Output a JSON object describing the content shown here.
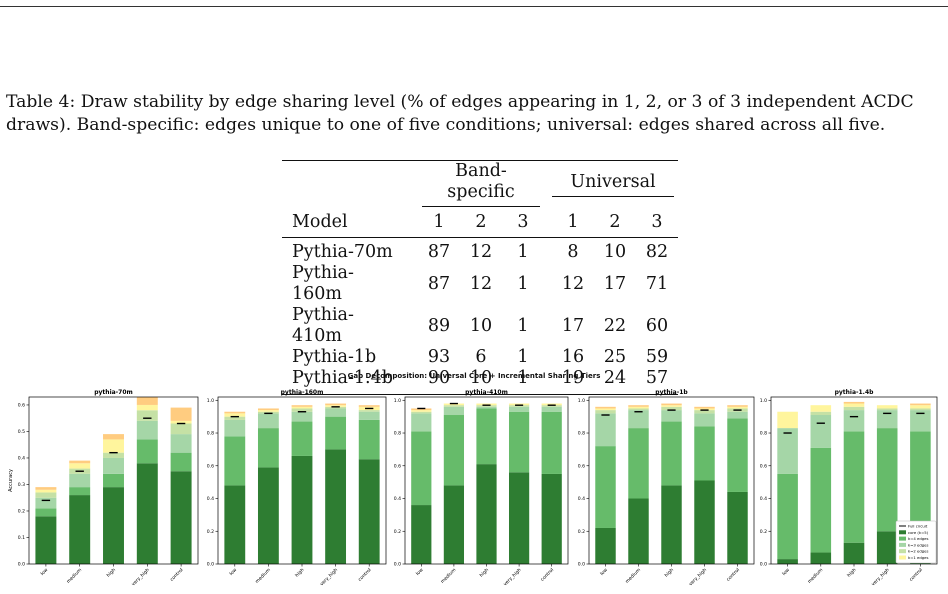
{
  "caption": "Table 4: Draw stability by edge sharing level (% of edges appearing in 1, 2, or 3 of 3 independent ACDC draws). Band-specific: edges unique to one of five conditions; universal: edges shared across all five.",
  "table": {
    "group_headers": [
      "Band-specific",
      "Universal"
    ],
    "model_header": "Model",
    "sub_headers": [
      "1",
      "2",
      "3",
      "1",
      "2",
      "3"
    ],
    "rows": [
      {
        "model": "Pythia-70m",
        "values": [
          "87",
          "12",
          "1",
          "8",
          "10",
          "82"
        ]
      },
      {
        "model": "Pythia-160m",
        "values": [
          "87",
          "12",
          "1",
          "12",
          "17",
          "71"
        ]
      },
      {
        "model": "Pythia-410m",
        "values": [
          "89",
          "10",
          "1",
          "17",
          "22",
          "60"
        ]
      },
      {
        "model": "Pythia-1b",
        "values": [
          "93",
          "6",
          "1",
          "16",
          "25",
          "59"
        ]
      },
      {
        "model": "Pythia-1.4b",
        "values": [
          "90",
          "10",
          "1",
          "19",
          "24",
          "57"
        ]
      }
    ]
  },
  "figure": {
    "title": "Gap Decomposition: Universal Core + Incremental Sharing Tiers",
    "colors": [
      "#2e7d32",
      "#66bb6a",
      "#a5d6a7",
      "#c5e1a5",
      "#fff59d",
      "#ffcc80"
    ],
    "legend": [
      "Full circuit",
      "core (k=5)",
      "k=4 edges",
      "k=3 edges",
      "k=2 edges",
      "k=1 edges"
    ]
  },
  "chart_data": [
    {
      "type": "bar",
      "stacked": true,
      "title": "pythia-70m",
      "ylabel": "Accuracy",
      "categories": [
        "low",
        "medium",
        "high",
        "very_high",
        "control"
      ],
      "ylim": [
        0,
        0.63
      ],
      "yticks": [
        "0.0",
        "0.1",
        "0.2",
        "0.3",
        "0.4",
        "0.5",
        "0.6"
      ],
      "ytick_values": [
        0,
        0.1,
        0.2,
        0.3,
        0.4,
        0.5,
        0.6
      ],
      "series": [
        {
          "values": [
            0.18,
            0.26,
            0.29,
            0.38,
            0.35
          ]
        },
        {
          "values": [
            0.03,
            0.03,
            0.05,
            0.09,
            0.07
          ]
        },
        {
          "values": [
            0.04,
            0.05,
            0.06,
            0.07,
            0.07
          ]
        },
        {
          "values": [
            0.02,
            0.02,
            0.02,
            0.04,
            0.04
          ]
        },
        {
          "values": [
            0.01,
            0.02,
            0.05,
            0.02,
            0.01
          ]
        },
        {
          "values": [
            0.01,
            0.01,
            0.02,
            0.03,
            0.05
          ]
        }
      ],
      "full_circuit": [
        0.24,
        0.35,
        0.42,
        0.55,
        0.53
      ]
    },
    {
      "type": "bar",
      "stacked": true,
      "title": "pythia-160m",
      "categories": [
        "low",
        "medium",
        "high",
        "very_high",
        "control"
      ],
      "ylim": [
        0,
        1.02
      ],
      "yticks": [
        "0.0",
        "0.2",
        "0.4",
        "0.6",
        "0.8",
        "1.0"
      ],
      "ytick_values": [
        0,
        0.2,
        0.4,
        0.6,
        0.8,
        1.0
      ],
      "series": [
        {
          "values": [
            0.48,
            0.59,
            0.66,
            0.7,
            0.64
          ]
        },
        {
          "values": [
            0.3,
            0.24,
            0.21,
            0.2,
            0.24
          ]
        },
        {
          "values": [
            0.1,
            0.09,
            0.06,
            0.05,
            0.05
          ]
        },
        {
          "values": [
            0.02,
            0.01,
            0.02,
            0.01,
            0.01
          ]
        },
        {
          "values": [
            0.02,
            0.01,
            0.01,
            0.01,
            0.02
          ]
        },
        {
          "values": [
            0.01,
            0.01,
            0.01,
            0.01,
            0.01
          ]
        }
      ],
      "full_circuit": [
        0.9,
        0.92,
        0.93,
        0.96,
        0.95
      ]
    },
    {
      "type": "bar",
      "stacked": true,
      "title": "pythia-410m",
      "categories": [
        "low",
        "medium",
        "high",
        "very_high",
        "control"
      ],
      "ylim": [
        0,
        1.02
      ],
      "yticks": [
        "0.0",
        "0.2",
        "0.4",
        "0.6",
        "0.8",
        "1.0"
      ],
      "ytick_values": [
        0,
        0.2,
        0.4,
        0.6,
        0.8,
        1.0
      ],
      "series": [
        {
          "values": [
            0.36,
            0.48,
            0.61,
            0.56,
            0.55
          ]
        },
        {
          "values": [
            0.45,
            0.43,
            0.34,
            0.37,
            0.38
          ]
        },
        {
          "values": [
            0.11,
            0.05,
            0.01,
            0.03,
            0.03
          ]
        },
        {
          "values": [
            0.01,
            0.01,
            0.01,
            0.01,
            0.01
          ]
        },
        {
          "values": [
            0.01,
            0.01,
            0.01,
            0.01,
            0.01
          ]
        },
        {
          "values": [
            0.01,
            0.0,
            0.0,
            0.0,
            0.0
          ]
        }
      ],
      "full_circuit": [
        0.95,
        0.98,
        0.97,
        0.97,
        0.97
      ]
    },
    {
      "type": "bar",
      "stacked": true,
      "title": "pythia-1b",
      "categories": [
        "low",
        "medium",
        "high",
        "very_high",
        "control"
      ],
      "ylim": [
        0,
        1.02
      ],
      "yticks": [
        "0.0",
        "0.2",
        "0.4",
        "0.6",
        "0.8",
        "1.0"
      ],
      "ytick_values": [
        0,
        0.2,
        0.4,
        0.6,
        0.8,
        1.0
      ],
      "series": [
        {
          "values": [
            0.22,
            0.4,
            0.48,
            0.51,
            0.44
          ]
        },
        {
          "values": [
            0.5,
            0.43,
            0.39,
            0.33,
            0.45
          ]
        },
        {
          "values": [
            0.2,
            0.11,
            0.07,
            0.08,
            0.04
          ]
        },
        {
          "values": [
            0.02,
            0.01,
            0.02,
            0.02,
            0.02
          ]
        },
        {
          "values": [
            0.01,
            0.01,
            0.01,
            0.01,
            0.01
          ]
        },
        {
          "values": [
            0.01,
            0.01,
            0.01,
            0.01,
            0.01
          ]
        }
      ],
      "full_circuit": [
        0.91,
        0.93,
        0.94,
        0.94,
        0.94
      ]
    },
    {
      "type": "bar",
      "stacked": true,
      "title": "pythia-1.4b",
      "categories": [
        "low",
        "medium",
        "high",
        "very_high",
        "control"
      ],
      "ylim": [
        0,
        1.02
      ],
      "yticks": [
        "0.0",
        "0.2",
        "0.4",
        "0.6",
        "0.8",
        "1.0"
      ],
      "ytick_values": [
        0,
        0.2,
        0.4,
        0.6,
        0.8,
        1.0
      ],
      "series": [
        {
          "values": [
            0.03,
            0.07,
            0.13,
            0.2,
            0.22
          ]
        },
        {
          "values": [
            0.52,
            0.64,
            0.68,
            0.63,
            0.59
          ]
        },
        {
          "values": [
            0.28,
            0.2,
            0.13,
            0.11,
            0.13
          ]
        },
        {
          "values": [
            0.0,
            0.02,
            0.02,
            0.01,
            0.01
          ]
        },
        {
          "values": [
            0.1,
            0.04,
            0.02,
            0.02,
            0.02
          ]
        },
        {
          "values": [
            0.0,
            0.0,
            0.01,
            0.0,
            0.01
          ]
        }
      ],
      "full_circuit": [
        0.8,
        0.86,
        0.9,
        0.92,
        0.92
      ]
    }
  ]
}
